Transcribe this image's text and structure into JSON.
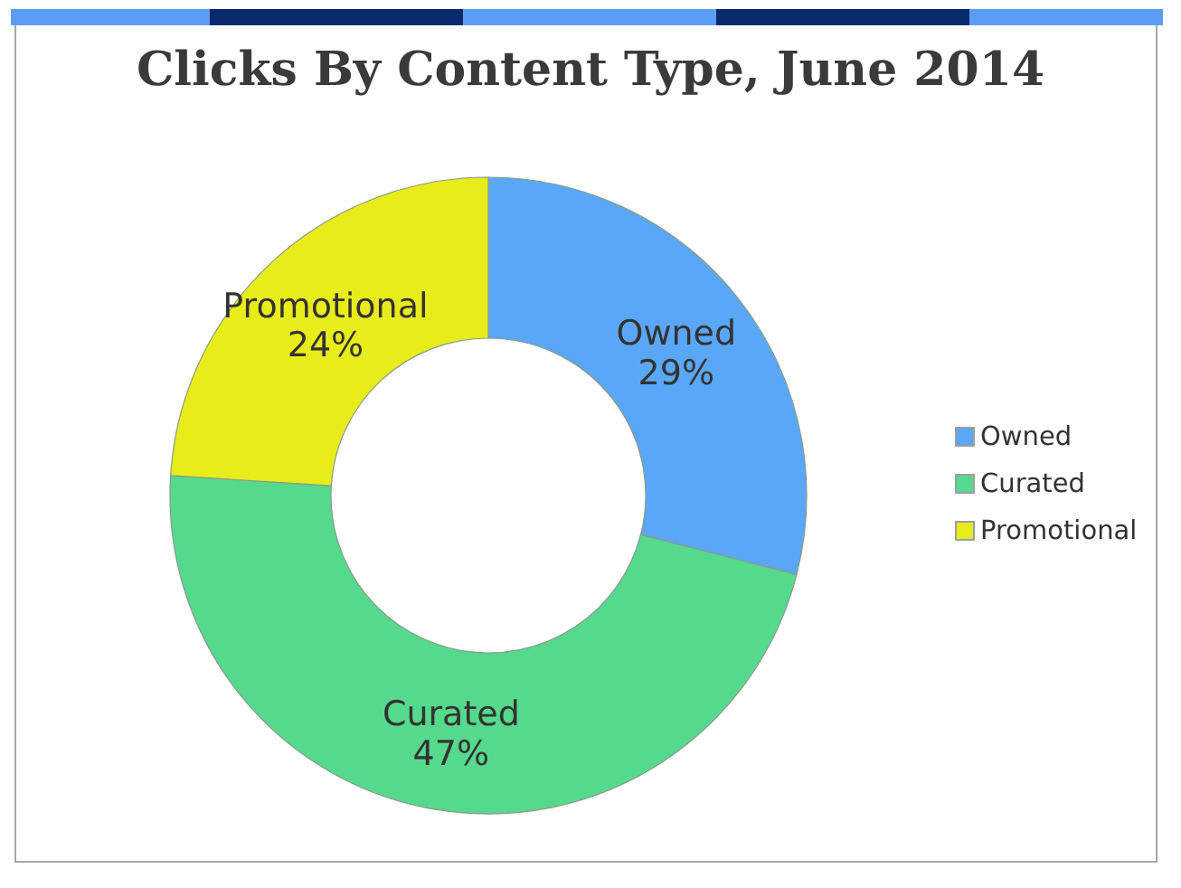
{
  "chart_data": {
    "type": "donut",
    "title": "Clicks By Content Type, June 2014",
    "categories": [
      "Owned",
      "Curated",
      "Promotional"
    ],
    "values": [
      29,
      47,
      24
    ],
    "value_labels": [
      "29%",
      "47%",
      "24%"
    ],
    "colors": [
      "#5aa7f7",
      "#55d98c",
      "#e8ec1a"
    ],
    "legend": "right"
  }
}
